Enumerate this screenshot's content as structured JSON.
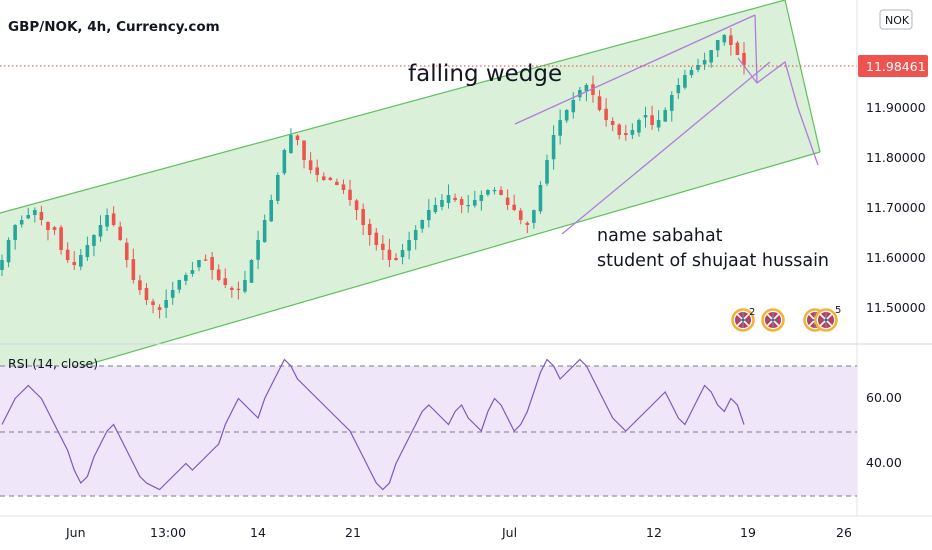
{
  "header": {
    "symbol_title": "GBP/NOK, 4h, Currency.com",
    "currency_badge": "NOK"
  },
  "annotations": {
    "pattern": "falling wedge",
    "author_line1": "name  sabahat",
    "author_line2": "student of shujaat hussain"
  },
  "events": [
    {
      "icon": "uk-flag-icon",
      "count": "2"
    },
    {
      "icon": "uk-flag-icon",
      "count": ""
    },
    {
      "icon": "uk-flag-icon",
      "count": "5"
    }
  ],
  "chart_data": [
    {
      "type": "candlestick",
      "title": "GBP/NOK, 4h, Currency.com",
      "y_ticks": [
        "11.50000",
        "11.60000",
        "11.70000",
        "11.80000",
        "11.90000",
        "11.98461"
      ],
      "x_ticks": [
        "Jun",
        "13:00",
        "14",
        "21",
        "Jul",
        "12",
        "19",
        "26"
      ],
      "ylim": [
        11.45,
        12.1
      ],
      "last_price": "11.98461",
      "last_price_value": 11.98461,
      "series": [
        {
          "values": [
            11.6,
            11.64,
            11.67,
            11.68,
            11.69,
            11.7,
            11.68,
            11.66,
            11.66,
            11.62,
            11.6,
            11.59,
            11.61,
            11.63,
            11.65,
            11.67,
            11.69,
            11.67,
            11.64,
            11.6,
            11.56,
            11.54,
            11.52,
            11.51,
            11.5,
            11.52,
            11.54,
            11.56,
            11.57,
            11.58,
            11.6,
            11.6,
            11.58,
            11.56,
            11.55,
            11.54,
            11.54,
            11.56,
            11.6,
            11.64,
            11.68,
            11.72,
            11.77,
            11.82,
            11.85,
            11.84,
            11.8,
            11.78,
            11.77,
            11.76,
            11.76,
            11.75,
            11.74,
            11.72,
            11.7,
            11.67,
            11.65,
            11.63,
            11.62,
            11.6,
            11.6,
            11.62,
            11.64,
            11.66,
            11.68,
            11.7,
            11.71,
            11.72,
            11.73,
            11.72,
            11.71,
            11.71,
            11.72,
            11.73,
            11.74,
            11.74,
            11.73,
            11.71,
            11.7,
            11.68,
            11.67,
            11.7,
            11.75,
            11.8,
            11.85,
            11.88,
            11.9,
            11.92,
            11.94,
            11.95,
            11.93,
            11.9,
            11.88,
            11.87,
            11.85,
            11.85,
            11.86,
            11.88,
            11.89,
            11.87,
            11.88,
            11.9,
            11.93,
            11.95,
            11.97,
            11.98,
            11.99,
            12.0,
            12.02,
            12.04,
            12.05,
            12.03,
            12.01,
            11.99
          ]
        }
      ]
    },
    {
      "type": "line",
      "title": "RSI (14, close)",
      "y_ticks": [
        "40.00",
        "60.00"
      ],
      "levels": [
        30,
        50,
        70
      ],
      "ylim": [
        26,
        76
      ],
      "series": [
        {
          "values": [
            52,
            56,
            60,
            62,
            64,
            62,
            60,
            56,
            52,
            48,
            44,
            38,
            34,
            36,
            42,
            46,
            50,
            52,
            48,
            44,
            40,
            36,
            34,
            33,
            32,
            34,
            36,
            38,
            40,
            38,
            40,
            42,
            44,
            46,
            52,
            56,
            60,
            58,
            56,
            54,
            60,
            64,
            68,
            72,
            70,
            66,
            64,
            62,
            60,
            58,
            56,
            54,
            52,
            50,
            46,
            42,
            38,
            34,
            32,
            34,
            40,
            44,
            48,
            52,
            56,
            58,
            56,
            54,
            52,
            56,
            58,
            54,
            52,
            50,
            56,
            60,
            58,
            54,
            50,
            52,
            56,
            62,
            68,
            72,
            70,
            66,
            68,
            70,
            72,
            70,
            66,
            62,
            58,
            54,
            52,
            50,
            52,
            54,
            56,
            58,
            60,
            62,
            58,
            54,
            52,
            56,
            60,
            64,
            62,
            58,
            56,
            60,
            58,
            52
          ]
        }
      ]
    }
  ]
}
